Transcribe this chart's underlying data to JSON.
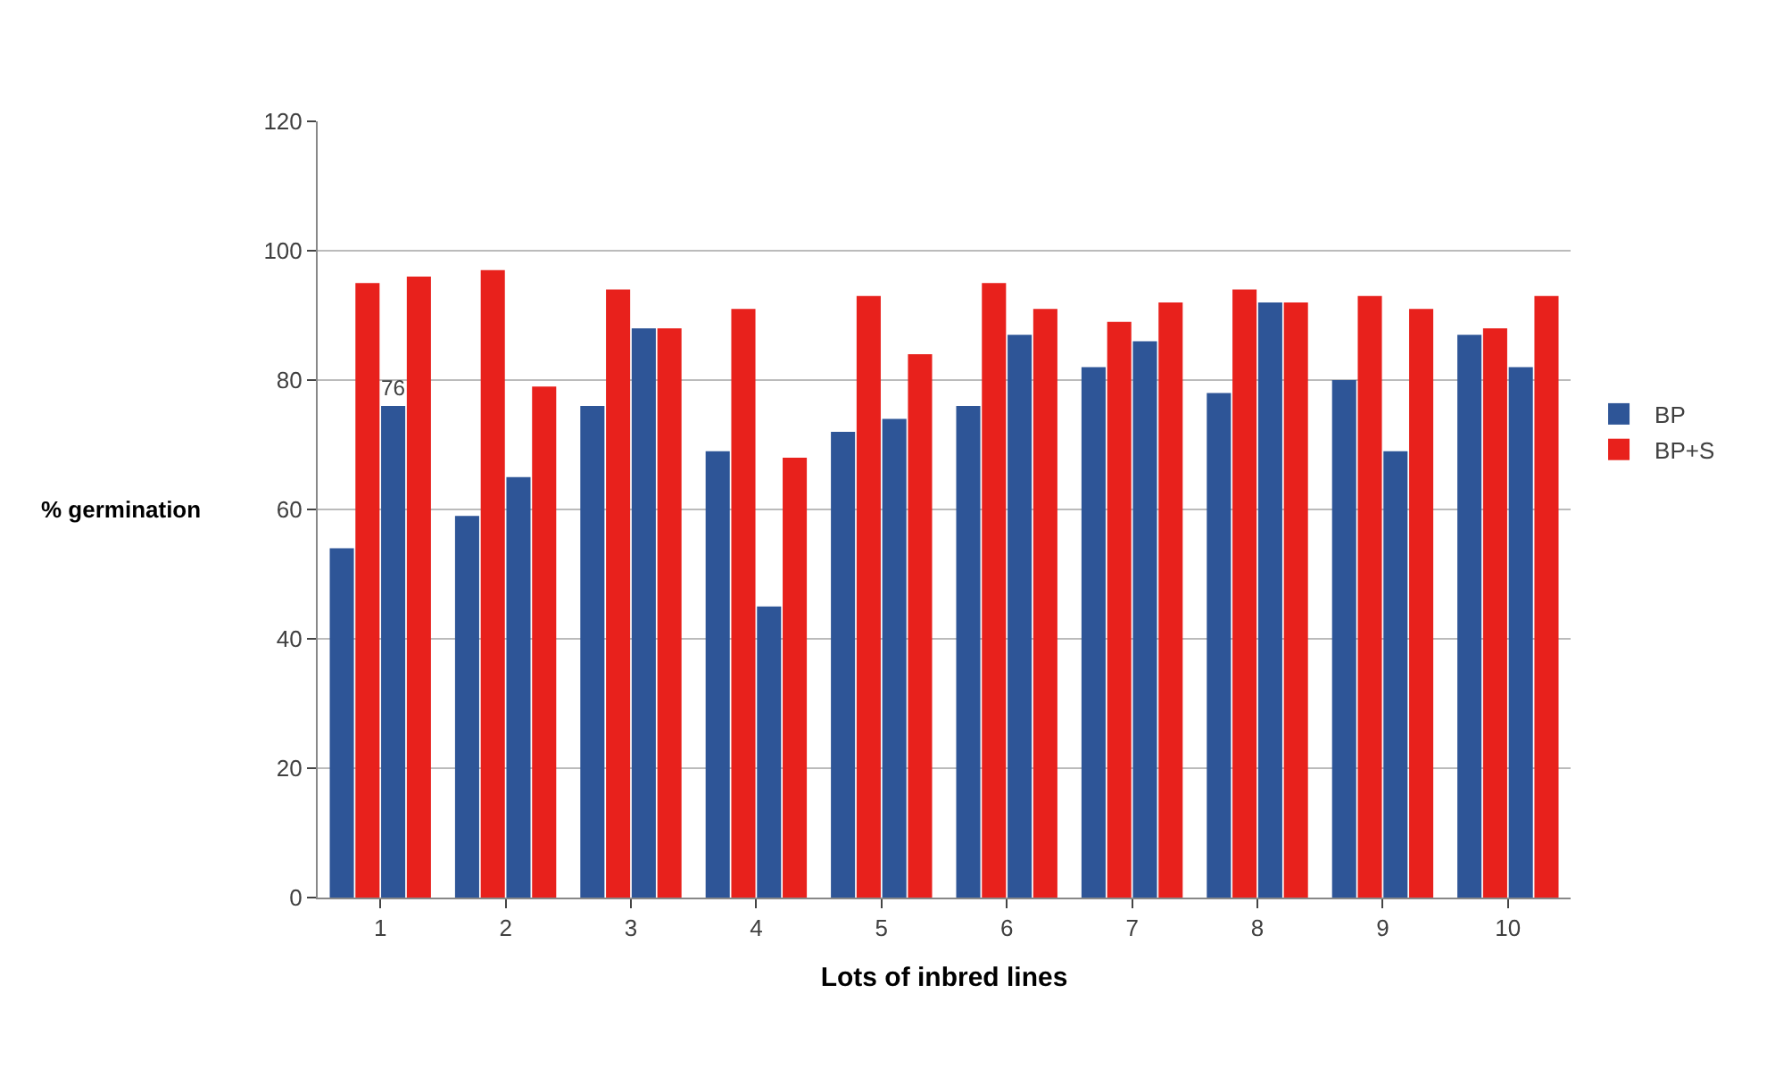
{
  "chart_data": {
    "type": "bar",
    "xlabel": "Lots of inbred lines",
    "ylabel": "% germination",
    "categories": [
      "1",
      "2",
      "3",
      "4",
      "5",
      "6",
      "7",
      "8",
      "9",
      "10"
    ],
    "series": [
      {
        "name": "BP",
        "color": "#2e5597",
        "values": [
          54,
          59,
          76,
          69,
          72,
          76,
          82,
          78,
          80,
          87
        ]
      },
      {
        "name": "BP+S",
        "color": "#e8211c",
        "values": [
          95,
          97,
          94,
          91,
          93,
          95,
          89,
          94,
          93,
          88
        ]
      },
      {
        "color": "#2e5597",
        "values": [
          76,
          65,
          88,
          45,
          74,
          87,
          86,
          92,
          69,
          82
        ],
        "value_labels": [
          "76",
          null,
          null,
          null,
          null,
          null,
          null,
          null,
          null,
          null
        ]
      },
      {
        "color": "#e8211c",
        "values": [
          96,
          79,
          88,
          68,
          84,
          91,
          92,
          92,
          91,
          93
        ]
      }
    ],
    "ylim": [
      0,
      120
    ],
    "yticks": [
      0,
      20,
      40,
      60,
      80,
      100,
      120
    ],
    "grid": "y",
    "legend": "right"
  }
}
